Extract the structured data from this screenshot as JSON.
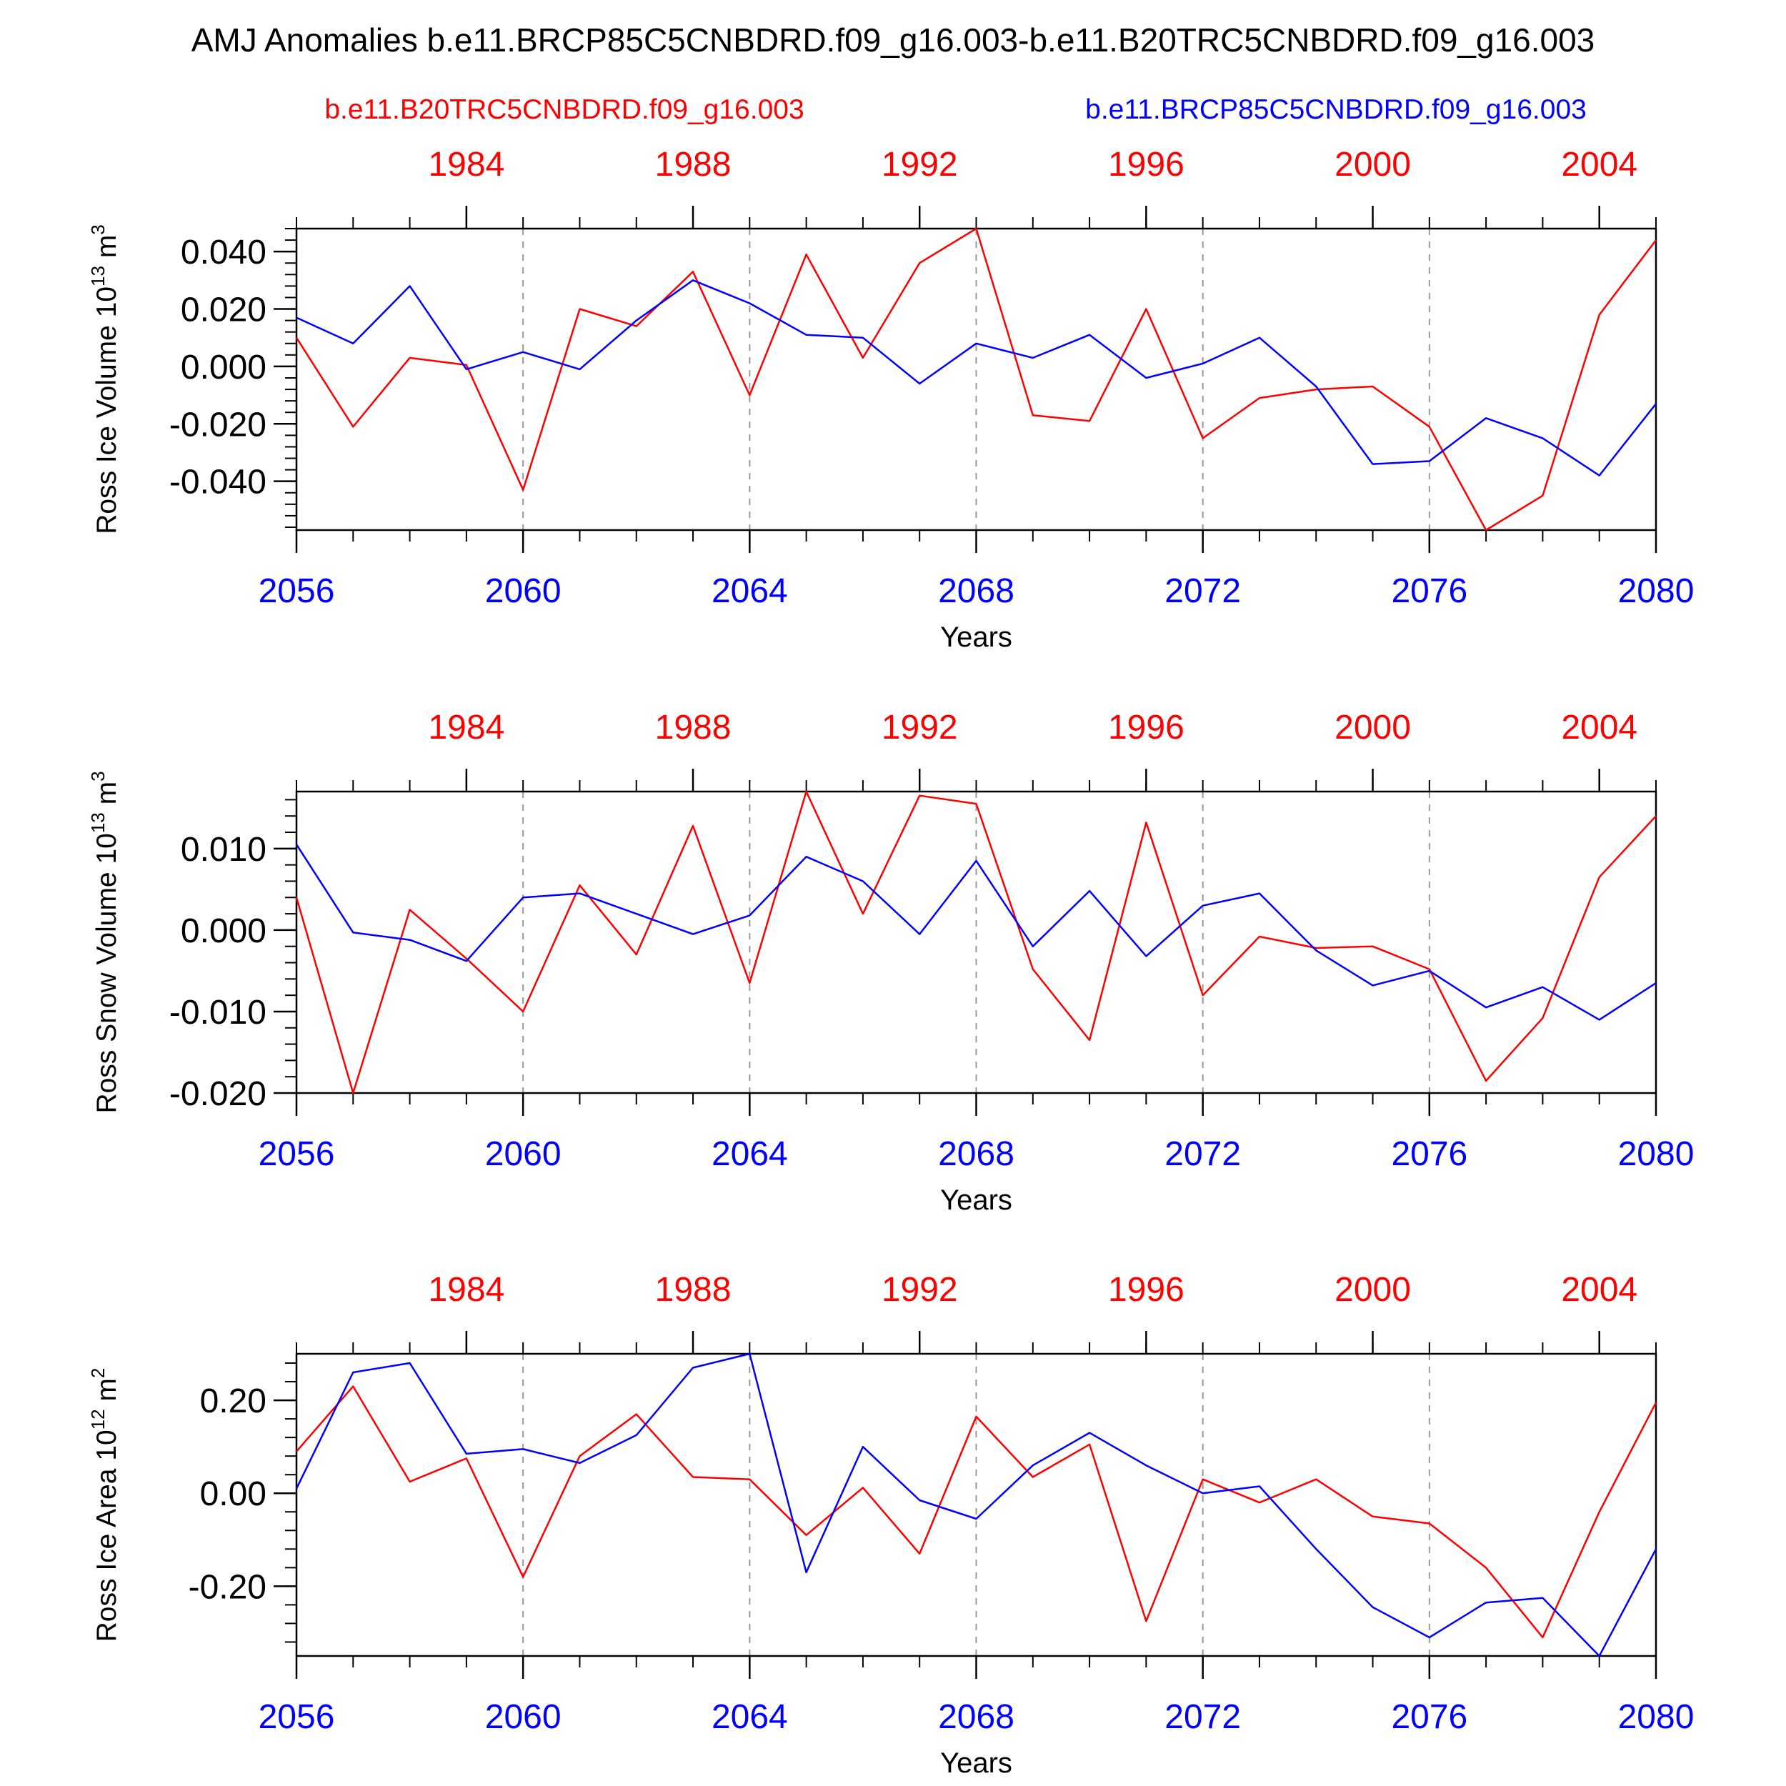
{
  "title": "AMJ Anomalies b.e11.BRCP85C5CNBDRD.f09_g16.003-b.e11.B20TRC5CNBDRD.f09_g16.003",
  "legend": {
    "left": "b.e11.B20TRC5CNBDRD.f09_g16.003",
    "right": "b.e11.BRCP85C5CNBDRD.f09_g16.003"
  },
  "colors": {
    "red": "#ff0000",
    "blue": "#0000ff"
  },
  "chart_data": [
    {
      "type": "line",
      "ylabel": "Ross Ice Volume 10",
      "ylabel_exp": "13",
      "ylabel_unit": " m",
      "ylabel_unit_exp": "3",
      "xlabel": "Years",
      "x": [
        2056,
        2057,
        2058,
        2059,
        2060,
        2061,
        2062,
        2063,
        2064,
        2065,
        2066,
        2067,
        2068,
        2069,
        2070,
        2071,
        2072,
        2073,
        2074,
        2075,
        2076,
        2077,
        2078,
        2079,
        2080
      ],
      "xlim": [
        2056,
        2080
      ],
      "ylim": [
        -0.057,
        0.048
      ],
      "yticks": [
        -0.04,
        -0.02,
        0.0,
        0.02,
        0.04
      ],
      "ytick_labels": [
        "-0.040",
        "-0.020",
        "0.000",
        "0.020",
        "0.040"
      ],
      "bottom_ticks": [
        2056,
        2060,
        2064,
        2068,
        2072,
        2076,
        2080
      ],
      "top_ticks": [
        {
          "pos": 2059,
          "label": "1984"
        },
        {
          "pos": 2063,
          "label": "1988"
        },
        {
          "pos": 2067,
          "label": "1992"
        },
        {
          "pos": 2071,
          "label": "1996"
        },
        {
          "pos": 2075,
          "label": "2000"
        },
        {
          "pos": 2079,
          "label": "2004"
        }
      ],
      "series": [
        {
          "color": "red",
          "values": [
            0.01,
            -0.021,
            0.003,
            0.0005,
            -0.043,
            0.02,
            0.014,
            0.033,
            -0.01,
            0.039,
            0.003,
            0.036,
            0.048,
            -0.017,
            -0.019,
            0.02,
            -0.025,
            -0.011,
            -0.008,
            -0.007,
            -0.021,
            -0.057,
            -0.045,
            0.018,
            0.044
          ]
        },
        {
          "color": "blue",
          "values": [
            0.017,
            0.008,
            0.028,
            -0.001,
            0.005,
            -0.001,
            0.016,
            0.03,
            0.022,
            0.011,
            0.01,
            -0.006,
            0.008,
            0.003,
            0.011,
            -0.004,
            0.001,
            0.01,
            -0.007,
            -0.034,
            -0.033,
            -0.018,
            -0.025,
            -0.038,
            -0.013
          ]
        }
      ]
    },
    {
      "type": "line",
      "ylabel": "Ross Snow Volume 10",
      "ylabel_exp": "13",
      "ylabel_unit": " m",
      "ylabel_unit_exp": "3",
      "xlabel": "Years",
      "x": [
        2056,
        2057,
        2058,
        2059,
        2060,
        2061,
        2062,
        2063,
        2064,
        2065,
        2066,
        2067,
        2068,
        2069,
        2070,
        2071,
        2072,
        2073,
        2074,
        2075,
        2076,
        2077,
        2078,
        2079,
        2080
      ],
      "xlim": [
        2056,
        2080
      ],
      "ylim": [
        -0.02,
        0.017
      ],
      "yticks": [
        -0.02,
        -0.01,
        0.0,
        0.01
      ],
      "ytick_labels": [
        "-0.020",
        "-0.010",
        "0.000",
        "0.010"
      ],
      "bottom_ticks": [
        2056,
        2060,
        2064,
        2068,
        2072,
        2076,
        2080
      ],
      "top_ticks": [
        {
          "pos": 2059,
          "label": "1984"
        },
        {
          "pos": 2063,
          "label": "1988"
        },
        {
          "pos": 2067,
          "label": "1992"
        },
        {
          "pos": 2071,
          "label": "1996"
        },
        {
          "pos": 2075,
          "label": "2000"
        },
        {
          "pos": 2079,
          "label": "2004"
        }
      ],
      "series": [
        {
          "color": "red",
          "values": [
            0.004,
            -0.02,
            0.0025,
            -0.0035,
            -0.01,
            0.0055,
            -0.003,
            0.0128,
            -0.0065,
            0.017,
            0.002,
            0.0165,
            0.0155,
            -0.0048,
            -0.0135,
            0.0132,
            -0.008,
            -0.0008,
            -0.0022,
            -0.002,
            -0.0048,
            -0.0185,
            -0.0108,
            0.0065,
            0.014
          ]
        },
        {
          "color": "blue",
          "values": [
            0.0105,
            -0.0003,
            -0.0012,
            -0.0038,
            0.004,
            0.0045,
            0.002,
            -0.0005,
            0.0018,
            0.009,
            0.006,
            -0.0005,
            0.0085,
            -0.002,
            0.0048,
            -0.0032,
            0.003,
            0.0045,
            -0.0025,
            -0.0068,
            -0.005,
            -0.0095,
            -0.007,
            -0.011,
            -0.0065
          ]
        }
      ]
    },
    {
      "type": "line",
      "ylabel": "Ross Ice Area 10",
      "ylabel_exp": "12",
      "ylabel_unit": " m",
      "ylabel_unit_exp": "2",
      "xlabel": "Years",
      "x": [
        2056,
        2057,
        2058,
        2059,
        2060,
        2061,
        2062,
        2063,
        2064,
        2065,
        2066,
        2067,
        2068,
        2069,
        2070,
        2071,
        2072,
        2073,
        2074,
        2075,
        2076,
        2077,
        2078,
        2079,
        2080
      ],
      "xlim": [
        2056,
        2080
      ],
      "ylim": [
        -0.35,
        0.3
      ],
      "yticks": [
        -0.2,
        0.0,
        0.2
      ],
      "ytick_labels": [
        "-0.20",
        "0.00",
        "0.20"
      ],
      "bottom_ticks": [
        2056,
        2060,
        2064,
        2068,
        2072,
        2076,
        2080
      ],
      "top_ticks": [
        {
          "pos": 2059,
          "label": "1984"
        },
        {
          "pos": 2063,
          "label": "1988"
        },
        {
          "pos": 2067,
          "label": "1992"
        },
        {
          "pos": 2071,
          "label": "1996"
        },
        {
          "pos": 2075,
          "label": "2000"
        },
        {
          "pos": 2079,
          "label": "2004"
        }
      ],
      "series": [
        {
          "color": "red",
          "values": [
            0.09,
            0.23,
            0.025,
            0.075,
            -0.18,
            0.08,
            0.17,
            0.035,
            0.03,
            -0.09,
            0.012,
            -0.13,
            0.165,
            0.035,
            0.105,
            -0.275,
            0.03,
            -0.02,
            0.03,
            -0.05,
            -0.065,
            -0.16,
            -0.31,
            -0.04,
            0.195
          ]
        },
        {
          "color": "blue",
          "values": [
            0.01,
            0.26,
            0.28,
            0.085,
            0.095,
            0.065,
            0.125,
            0.27,
            0.3,
            -0.17,
            0.1,
            -0.015,
            -0.055,
            0.06,
            0.13,
            0.06,
            0.0,
            0.015,
            -0.12,
            -0.245,
            -0.31,
            -0.235,
            -0.225,
            -0.35,
            -0.12
          ]
        }
      ]
    }
  ]
}
